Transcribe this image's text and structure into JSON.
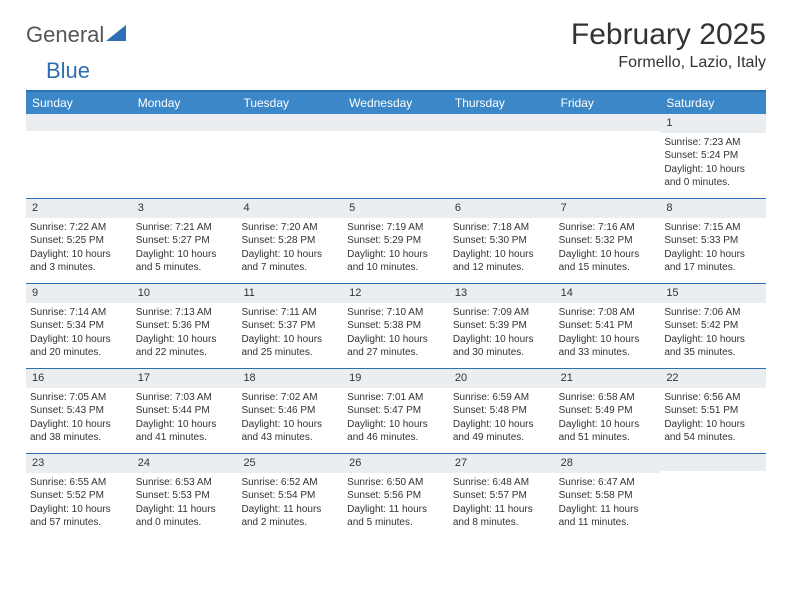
{
  "brand": {
    "part1": "General",
    "part2": "Blue"
  },
  "title": "February 2025",
  "location": "Formello, Lazio, Italy",
  "colors": {
    "header_bg": "#3b87c8",
    "accent": "#2d6fb5",
    "daynum_bg": "#ebeef0",
    "text": "#333333",
    "bg": "#ffffff"
  },
  "day_headers": [
    "Sunday",
    "Monday",
    "Tuesday",
    "Wednesday",
    "Thursday",
    "Friday",
    "Saturday"
  ],
  "weeks": [
    [
      {
        "blank": true
      },
      {
        "blank": true
      },
      {
        "blank": true
      },
      {
        "blank": true
      },
      {
        "blank": true
      },
      {
        "blank": true
      },
      {
        "day": "1",
        "sunrise": "Sunrise: 7:23 AM",
        "sunset": "Sunset: 5:24 PM",
        "daylight": "Daylight: 10 hours and 0 minutes."
      }
    ],
    [
      {
        "day": "2",
        "sunrise": "Sunrise: 7:22 AM",
        "sunset": "Sunset: 5:25 PM",
        "daylight": "Daylight: 10 hours and 3 minutes."
      },
      {
        "day": "3",
        "sunrise": "Sunrise: 7:21 AM",
        "sunset": "Sunset: 5:27 PM",
        "daylight": "Daylight: 10 hours and 5 minutes."
      },
      {
        "day": "4",
        "sunrise": "Sunrise: 7:20 AM",
        "sunset": "Sunset: 5:28 PM",
        "daylight": "Daylight: 10 hours and 7 minutes."
      },
      {
        "day": "5",
        "sunrise": "Sunrise: 7:19 AM",
        "sunset": "Sunset: 5:29 PM",
        "daylight": "Daylight: 10 hours and 10 minutes."
      },
      {
        "day": "6",
        "sunrise": "Sunrise: 7:18 AM",
        "sunset": "Sunset: 5:30 PM",
        "daylight": "Daylight: 10 hours and 12 minutes."
      },
      {
        "day": "7",
        "sunrise": "Sunrise: 7:16 AM",
        "sunset": "Sunset: 5:32 PM",
        "daylight": "Daylight: 10 hours and 15 minutes."
      },
      {
        "day": "8",
        "sunrise": "Sunrise: 7:15 AM",
        "sunset": "Sunset: 5:33 PM",
        "daylight": "Daylight: 10 hours and 17 minutes."
      }
    ],
    [
      {
        "day": "9",
        "sunrise": "Sunrise: 7:14 AM",
        "sunset": "Sunset: 5:34 PM",
        "daylight": "Daylight: 10 hours and 20 minutes."
      },
      {
        "day": "10",
        "sunrise": "Sunrise: 7:13 AM",
        "sunset": "Sunset: 5:36 PM",
        "daylight": "Daylight: 10 hours and 22 minutes."
      },
      {
        "day": "11",
        "sunrise": "Sunrise: 7:11 AM",
        "sunset": "Sunset: 5:37 PM",
        "daylight": "Daylight: 10 hours and 25 minutes."
      },
      {
        "day": "12",
        "sunrise": "Sunrise: 7:10 AM",
        "sunset": "Sunset: 5:38 PM",
        "daylight": "Daylight: 10 hours and 27 minutes."
      },
      {
        "day": "13",
        "sunrise": "Sunrise: 7:09 AM",
        "sunset": "Sunset: 5:39 PM",
        "daylight": "Daylight: 10 hours and 30 minutes."
      },
      {
        "day": "14",
        "sunrise": "Sunrise: 7:08 AM",
        "sunset": "Sunset: 5:41 PM",
        "daylight": "Daylight: 10 hours and 33 minutes."
      },
      {
        "day": "15",
        "sunrise": "Sunrise: 7:06 AM",
        "sunset": "Sunset: 5:42 PM",
        "daylight": "Daylight: 10 hours and 35 minutes."
      }
    ],
    [
      {
        "day": "16",
        "sunrise": "Sunrise: 7:05 AM",
        "sunset": "Sunset: 5:43 PM",
        "daylight": "Daylight: 10 hours and 38 minutes."
      },
      {
        "day": "17",
        "sunrise": "Sunrise: 7:03 AM",
        "sunset": "Sunset: 5:44 PM",
        "daylight": "Daylight: 10 hours and 41 minutes."
      },
      {
        "day": "18",
        "sunrise": "Sunrise: 7:02 AM",
        "sunset": "Sunset: 5:46 PM",
        "daylight": "Daylight: 10 hours and 43 minutes."
      },
      {
        "day": "19",
        "sunrise": "Sunrise: 7:01 AM",
        "sunset": "Sunset: 5:47 PM",
        "daylight": "Daylight: 10 hours and 46 minutes."
      },
      {
        "day": "20",
        "sunrise": "Sunrise: 6:59 AM",
        "sunset": "Sunset: 5:48 PM",
        "daylight": "Daylight: 10 hours and 49 minutes."
      },
      {
        "day": "21",
        "sunrise": "Sunrise: 6:58 AM",
        "sunset": "Sunset: 5:49 PM",
        "daylight": "Daylight: 10 hours and 51 minutes."
      },
      {
        "day": "22",
        "sunrise": "Sunrise: 6:56 AM",
        "sunset": "Sunset: 5:51 PM",
        "daylight": "Daylight: 10 hours and 54 minutes."
      }
    ],
    [
      {
        "day": "23",
        "sunrise": "Sunrise: 6:55 AM",
        "sunset": "Sunset: 5:52 PM",
        "daylight": "Daylight: 10 hours and 57 minutes."
      },
      {
        "day": "24",
        "sunrise": "Sunrise: 6:53 AM",
        "sunset": "Sunset: 5:53 PM",
        "daylight": "Daylight: 11 hours and 0 minutes."
      },
      {
        "day": "25",
        "sunrise": "Sunrise: 6:52 AM",
        "sunset": "Sunset: 5:54 PM",
        "daylight": "Daylight: 11 hours and 2 minutes."
      },
      {
        "day": "26",
        "sunrise": "Sunrise: 6:50 AM",
        "sunset": "Sunset: 5:56 PM",
        "daylight": "Daylight: 11 hours and 5 minutes."
      },
      {
        "day": "27",
        "sunrise": "Sunrise: 6:48 AM",
        "sunset": "Sunset: 5:57 PM",
        "daylight": "Daylight: 11 hours and 8 minutes."
      },
      {
        "day": "28",
        "sunrise": "Sunrise: 6:47 AM",
        "sunset": "Sunset: 5:58 PM",
        "daylight": "Daylight: 11 hours and 11 minutes."
      },
      {
        "blank": true
      }
    ]
  ]
}
